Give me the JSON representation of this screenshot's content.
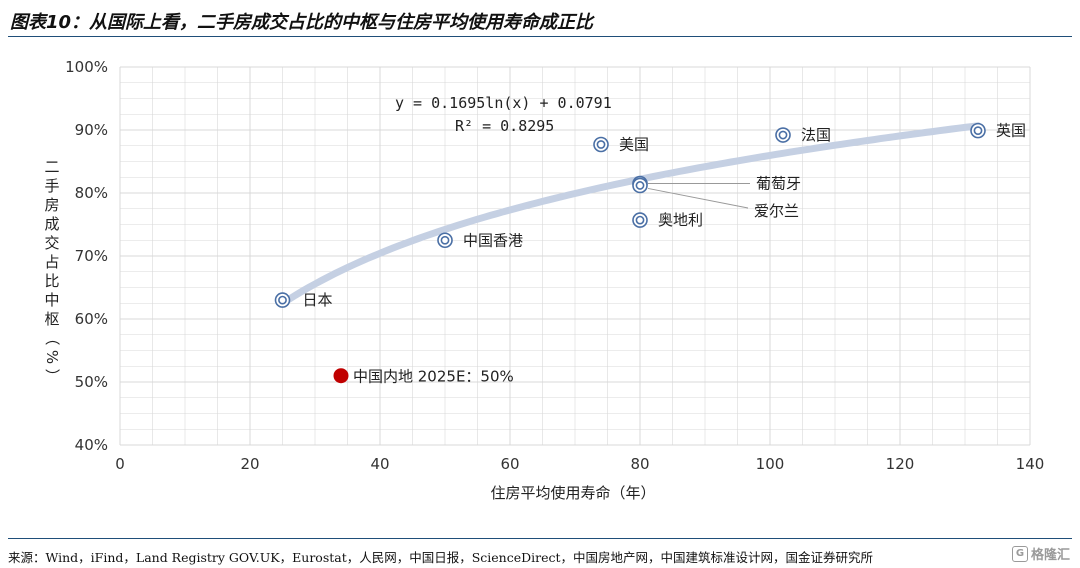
{
  "figure_title": "图表10：从国际上看，二手房成交占比的中枢与住房平均使用寿命成正比",
  "source": "来源：Wind，iFind，Land Registry GOV.UK，Eurostat，人民网，中国日报，ScienceDirect，中国房地产网，中国建筑标准设计网，国金证券研究所",
  "watermark": "格隆汇",
  "colors": {
    "rule": "#1f4e79",
    "marker": "#4a6fa5",
    "trend": "#c5d0e3",
    "highlight": "#c00000",
    "grid": "#d9d9d9"
  },
  "chart_data": {
    "type": "scatter",
    "xlabel": "住房平均使用寿命（年）",
    "ylabel": "二手房成交占比中枢（%）",
    "xlim": [
      0,
      140
    ],
    "ylim": [
      0.4,
      1.0
    ],
    "x_ticks": [
      "0",
      "20",
      "40",
      "60",
      "80",
      "100",
      "120",
      "140"
    ],
    "y_ticks": [
      "40%",
      "50%",
      "60%",
      "70%",
      "80%",
      "90%",
      "100%"
    ],
    "grid": true,
    "trendline": {
      "equation": "y = 0.1695ln(x) + 0.0791",
      "r2": "R² = 0.8295",
      "a": 0.1695,
      "b": 0.0791,
      "x_range": [
        25,
        132
      ]
    },
    "points": [
      {
        "label": "日本",
        "x": 25,
        "y": 0.63
      },
      {
        "label": "中国香港",
        "x": 50,
        "y": 0.725
      },
      {
        "label": "美国",
        "x": 74,
        "y": 0.877
      },
      {
        "label": "葡萄牙",
        "x": 80,
        "y": 0.815
      },
      {
        "label": "爱尔兰",
        "x": 80,
        "y": 0.812
      },
      {
        "label": "奥地利",
        "x": 80,
        "y": 0.757
      },
      {
        "label": "法国",
        "x": 102,
        "y": 0.892
      },
      {
        "label": "英国",
        "x": 132,
        "y": 0.899
      }
    ],
    "highlight": {
      "label": "中国内地 2025E：50%",
      "x": 34,
      "y": 0.51
    }
  }
}
